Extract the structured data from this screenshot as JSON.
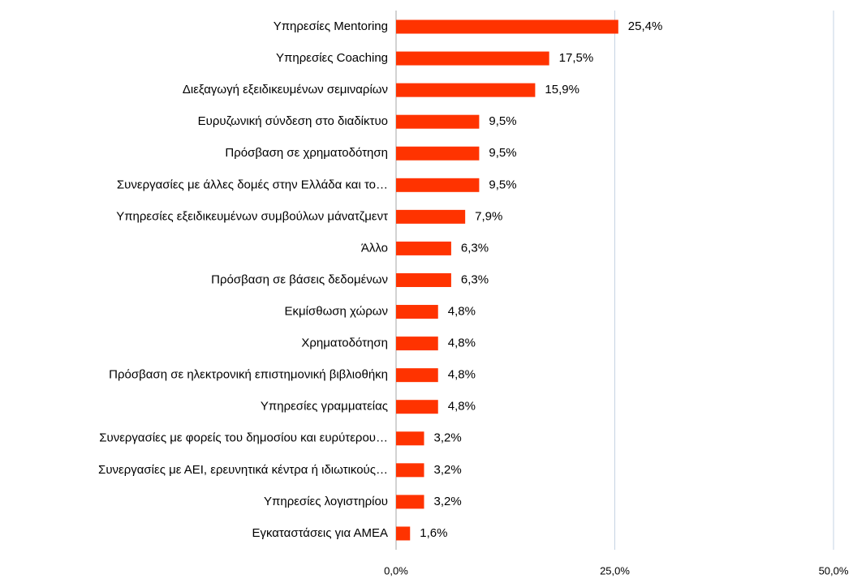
{
  "chart_data": {
    "type": "barh",
    "categories": [
      "Υπηρεσίες Mentoring",
      "Υπηρεσίες Coaching",
      "Διεξαγωγή εξειδικευμένων σεμιναρίων",
      "Ευρυζωνική σύνδεση στο διαδίκτυο",
      "Πρόσβαση σε χρηματοδότηση",
      "Συνεργασίες με άλλες δομές στην Ελλάδα και το…",
      "Υπηρεσίες εξειδικευμένων συμβούλων μάνατζμεντ",
      "Άλλο",
      "Πρόσβαση σε βάσεις δεδομένων",
      "Εκμίσθωση χώρων",
      "Χρηματοδότηση",
      "Πρόσβαση σε ηλεκτρονική επιστημονική βιβλιοθήκη",
      "Υπηρεσίες γραμματείας",
      "Συνεργασίες με φορείς του δημοσίου και ευρύτερου…",
      "Συνεργασίες με ΑΕΙ, ερευνητικά κέντρα ή ιδιωτικούς…",
      "Υπηρεσίες λογιστηρίου",
      "Εγκαταστάσεις για ΑΜΕΑ"
    ],
    "values": [
      25.4,
      17.5,
      15.9,
      9.5,
      9.5,
      9.5,
      7.9,
      6.3,
      6.3,
      4.8,
      4.8,
      4.8,
      4.8,
      3.2,
      3.2,
      3.2,
      1.6
    ],
    "value_labels": [
      "25,4%",
      "17,5%",
      "15,9%",
      "9,5%",
      "9,5%",
      "9,5%",
      "7,9%",
      "6,3%",
      "6,3%",
      "4,8%",
      "4,8%",
      "4,8%",
      "4,8%",
      "3,2%",
      "3,2%",
      "3,2%",
      "1,6%"
    ],
    "color": "#ff3300",
    "xlim": [
      0,
      50
    ],
    "xticks": [
      {
        "value": 0,
        "label": "0,0%"
      },
      {
        "value": 25,
        "label": "25,0%"
      },
      {
        "value": 50,
        "label": "50,0%"
      }
    ],
    "grid": true
  }
}
